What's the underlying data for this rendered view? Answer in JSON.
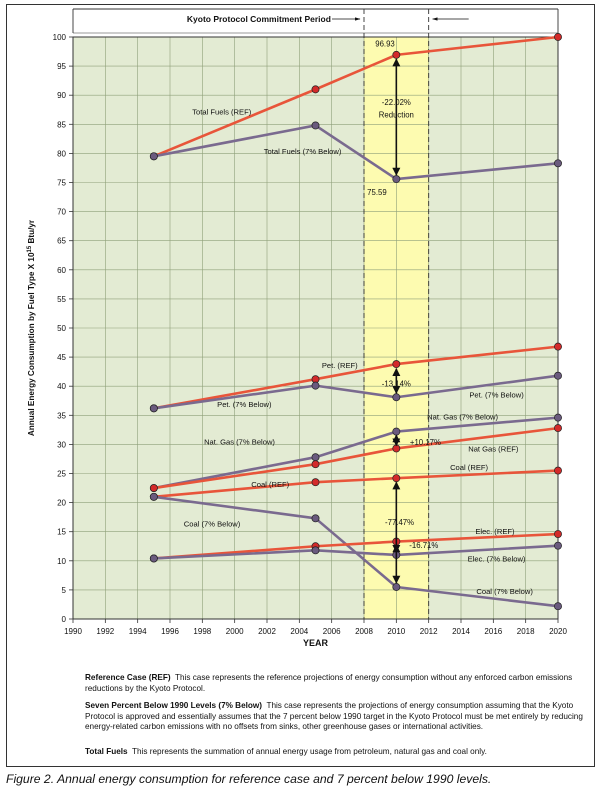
{
  "chart_data": {
    "type": "line",
    "period_title": "Kyoto Protocol Commitment Period",
    "ylabel": "Annual Energy Consumption by Fuel Type X 10",
    "ylabel_exp": "15",
    "ylabel_unit": " Btu/yr",
    "xlabel": "YEAR",
    "xlim": [
      1990,
      2020
    ],
    "ylim": [
      0,
      100
    ],
    "xticks": [
      "1990",
      "1992",
      "1994",
      "1996",
      "1998",
      "2000",
      "2002",
      "2004",
      "2006",
      "2008",
      "2010",
      "2012",
      "2014",
      "2016",
      "2018",
      "2020"
    ],
    "yticks": [
      "0",
      "5",
      "10",
      "15",
      "20",
      "25",
      "30",
      "35",
      "40",
      "45",
      "50",
      "55",
      "60",
      "65",
      "70",
      "75",
      "80",
      "85",
      "90",
      "95",
      "100"
    ],
    "commitment_period": [
      2008,
      2012
    ],
    "grid": true,
    "colors": {
      "ref": "#e8553a",
      "below": "#7a6a8f",
      "plot_bg": "#e3ebd3",
      "period_bg": "#fdfbb0",
      "marker": "#d32a2a",
      "marker_below": "#6a5a7e"
    },
    "series": [
      {
        "name": "Total Fuels (REF)",
        "group": "ref",
        "x": [
          1995,
          2005,
          2010,
          2020
        ],
        "y": [
          79.5,
          91.0,
          96.93,
          100.0
        ]
      },
      {
        "name": "Total Fuels (7% Below)",
        "group": "below",
        "x": [
          1995,
          2005,
          2010,
          2020
        ],
        "y": [
          79.5,
          84.8,
          75.59,
          78.3
        ]
      },
      {
        "name": "Pet. (REF)",
        "group": "ref",
        "x": [
          1995,
          2005,
          2010,
          2020
        ],
        "y": [
          36.2,
          41.2,
          43.8,
          46.8
        ]
      },
      {
        "name": "Pet. (7% Below)",
        "group": "below",
        "x": [
          1995,
          2005,
          2010,
          2020
        ],
        "y": [
          36.2,
          40.1,
          38.1,
          41.8
        ]
      },
      {
        "name": "Nat. Gas (7% Below)",
        "group": "below",
        "x": [
          1995,
          2005,
          2010,
          2020
        ],
        "y": [
          22.5,
          27.8,
          32.2,
          34.6
        ]
      },
      {
        "name": "Nat Gas (REF)",
        "group": "ref",
        "x": [
          1995,
          2005,
          2010,
          2020
        ],
        "y": [
          22.5,
          26.6,
          29.3,
          32.8
        ]
      },
      {
        "name": "Coal (REF)",
        "group": "ref",
        "x": [
          1995,
          2005,
          2010,
          2020
        ],
        "y": [
          21.0,
          23.5,
          24.2,
          25.5
        ]
      },
      {
        "name": "Coal (7% Below)",
        "group": "below",
        "x": [
          1995,
          2005,
          2010,
          2020
        ],
        "y": [
          21.0,
          17.3,
          5.5,
          2.2
        ]
      },
      {
        "name": "Elec. (REF)",
        "group": "ref",
        "x": [
          1995,
          2005,
          2010,
          2020
        ],
        "y": [
          10.4,
          12.5,
          13.3,
          14.6
        ]
      },
      {
        "name": "Elec. (7% Below)",
        "group": "below",
        "x": [
          1995,
          2005,
          2010,
          2020
        ],
        "y": [
          10.4,
          11.8,
          11.0,
          12.6
        ]
      }
    ],
    "annotations": [
      {
        "text": "96.93",
        "x": 2009.3,
        "y": 98.9,
        "anchor": "middle"
      },
      {
        "text": "75.59",
        "x": 2008.8,
        "y": 73.4,
        "anchor": "middle"
      },
      {
        "text": "-22.02%",
        "x": 2010,
        "y": 88.8,
        "anchor": "middle"
      },
      {
        "text": "Reduction",
        "x": 2010,
        "y": 86.7,
        "anchor": "middle"
      },
      {
        "text": "-13.14%",
        "x": 2010,
        "y": 40.5,
        "anchor": "middle"
      },
      {
        "text": "+10.17%",
        "x": 2011.8,
        "y": 30.4,
        "anchor": "middle"
      },
      {
        "text": "-77.47%",
        "x": 2010.2,
        "y": 16.7,
        "anchor": "middle"
      },
      {
        "text": "-16.71%",
        "x": 2011.7,
        "y": 12.7,
        "anchor": "middle"
      }
    ],
    "series_labels": [
      {
        "text": "Total Fuels (REF)",
        "x": 1999.2,
        "y": 87.2
      },
      {
        "text": "Total Fuels (7% Below)",
        "x": 2004.2,
        "y": 80.4
      },
      {
        "text": "Pet. (REF)",
        "x": 2006.5,
        "y": 43.6
      },
      {
        "text": "Pet. (7% Below)",
        "x": 2000.6,
        "y": 36.9
      },
      {
        "text": "Pet. (7% Below)",
        "x": 2016.2,
        "y": 38.6
      },
      {
        "text": "Nat. Gas (7% Below)",
        "x": 2014.1,
        "y": 34.8
      },
      {
        "text": "Nat. Gas (7% Below)",
        "x": 2000.3,
        "y": 30.5
      },
      {
        "text": "Nat Gas (REF)",
        "x": 2016.0,
        "y": 29.3
      },
      {
        "text": "Coal (REF)",
        "x": 2014.5,
        "y": 26.1
      },
      {
        "text": "Coal (REF)",
        "x": 2002.2,
        "y": 23.2
      },
      {
        "text": "Coal (7% Below)",
        "x": 1998.6,
        "y": 16.4
      },
      {
        "text": "Elec. (REF)",
        "x": 2016.1,
        "y": 15.1
      },
      {
        "text": "Elec. (7% Below)",
        "x": 2016.2,
        "y": 10.4
      },
      {
        "text": "Coal (7% Below)",
        "x": 2016.7,
        "y": 4.8
      }
    ]
  },
  "notes": [
    {
      "term": "Reference Case (REF)",
      "text": "This case represents the reference projections of energy consumption without any enforced carbon emissions reductions by the Kyoto Protocol."
    },
    {
      "term": "Seven Percent Below 1990 Levels (7% Below)",
      "text": "This case represents the projections of energy consumption assuming that the Kyoto Protocol is approved and essentially assumes that the 7 percent below 1990 target in the Kyoto Protocol must be met entirely by reducing energy-related carbon emissions with no offsets from sinks, other greenhouse gases or international activities."
    },
    {
      "term": "Total Fuels",
      "text": "This represents the summation of annual energy usage from petroleum, natural gas and coal only."
    }
  ],
  "caption": "Figure 2. Annual energy consumption for reference case and 7 percent below 1990 levels."
}
